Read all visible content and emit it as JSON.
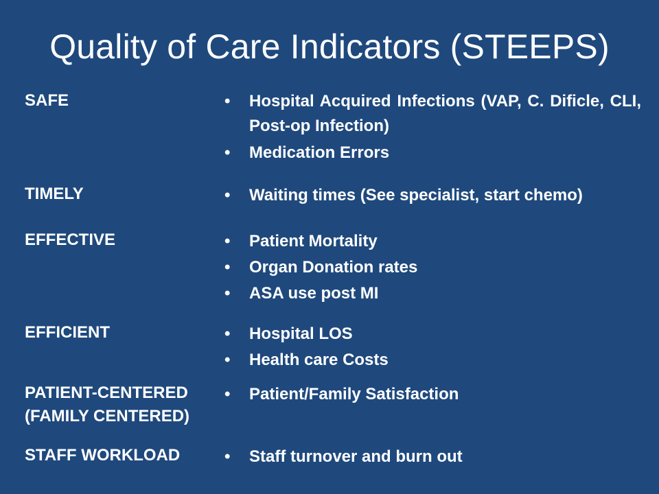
{
  "title": "Quality of Care Indicators (STEEPS)",
  "bullet_glyph": "•",
  "rows": [
    {
      "label_lines": [
        "SAFE"
      ],
      "items": [
        "Hospital Acquired Infections                (VAP, C. Dificle, CLI, Post-op Infection)",
        "Medication Errors"
      ]
    },
    {
      "label_lines": [
        "TIMELY"
      ],
      "items": [
        "Waiting times (See specialist, start chemo)"
      ]
    },
    {
      "label_lines": [
        "EFFECTIVE"
      ],
      "items": [
        "Patient Mortality",
        "Organ Donation rates",
        "ASA use post MI"
      ]
    },
    {
      "label_lines": [
        "EFFICIENT"
      ],
      "items": [
        "Hospital LOS",
        "Health care Costs"
      ]
    },
    {
      "label_lines": [
        "PATIENT-CENTERED",
        "(FAMILY CENTERED)"
      ],
      "items": [
        "Patient/Family Satisfaction"
      ]
    },
    {
      "label_lines": [
        "STAFF WORKLOAD"
      ],
      "items": [
        "Staff turnover and burn out"
      ]
    }
  ],
  "colors": {
    "background": "#1f497d",
    "text": "#ffffff"
  }
}
